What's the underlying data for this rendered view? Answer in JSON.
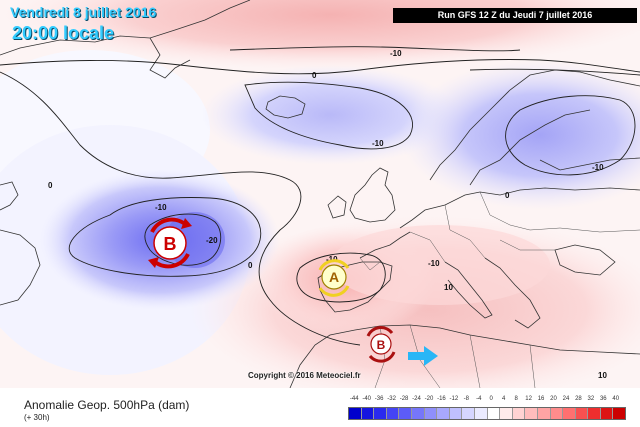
{
  "header": {
    "date": "Vendredi 8 juillet 2016",
    "time": "20:00 locale",
    "run": "Run GFS 12 Z du Jeudi 7 juillet 2016"
  },
  "map": {
    "copyright": "Copyright © 2016 Meteociel.fr",
    "contour_labels": [
      "0",
      "0",
      "-10",
      "-10",
      "-10",
      "-10",
      "-20",
      "0",
      "-10",
      "-10",
      "10",
      "10",
      "0"
    ],
    "systems": [
      {
        "type": "low",
        "letter": "B",
        "icon": "low-pressure-cyclone-icon"
      },
      {
        "type": "high",
        "letter": "A",
        "icon": "high-pressure-anticyclone-icon"
      },
      {
        "type": "low",
        "letter": "B",
        "icon": "low-pressure-cyclone-icon"
      }
    ],
    "arrow_icon": "movement-arrow-icon"
  },
  "footer": {
    "label": "Anomalie Geop. 500hPa (dam)",
    "lead": "(+ 30h)"
  },
  "legend": {
    "ticks": [
      "-44",
      "-40",
      "-36",
      "-32",
      "-28",
      "-24",
      "-20",
      "-16",
      "-12",
      "-8",
      "-4",
      "0",
      "4",
      "8",
      "12",
      "16",
      "20",
      "24",
      "28",
      "32",
      "36",
      "40"
    ],
    "colors": [
      "#0000cc",
      "#1515e0",
      "#2a2aee",
      "#4444f5",
      "#5c5cf8",
      "#7676fa",
      "#8f8ffb",
      "#a8a8fd",
      "#c0c0fe",
      "#d6d6ff",
      "#ebebff",
      "#ffffff",
      "#ffebeb",
      "#ffd3d3",
      "#ffbcbc",
      "#ffa4a4",
      "#ff8c8c",
      "#ff7070",
      "#f85050",
      "#ee2e2e",
      "#dd1414",
      "#cc0000"
    ]
  }
}
